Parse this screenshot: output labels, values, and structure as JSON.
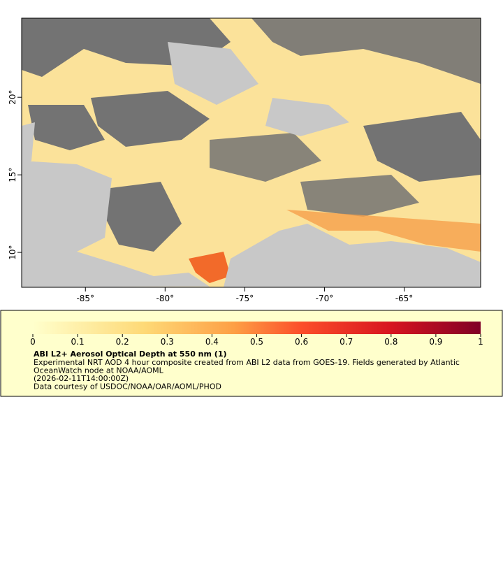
{
  "map": {
    "xlim": [
      -89,
      -60.2
    ],
    "ylim": [
      7.75,
      25.1
    ],
    "xticks": [
      {
        "value": -85,
        "label": "-85°"
      },
      {
        "value": -80,
        "label": "-80°"
      },
      {
        "value": -75,
        "label": "-75°"
      },
      {
        "value": -70,
        "label": "-70°"
      },
      {
        "value": -65,
        "label": "-65°"
      }
    ],
    "yticks": [
      {
        "value": 10,
        "label": "10°"
      },
      {
        "value": 15,
        "label": "15°"
      },
      {
        "value": 20,
        "label": "20°"
      }
    ]
  },
  "colorbar": {
    "lim": [
      0,
      1
    ],
    "ticks": [
      0,
      0.1,
      0.2,
      0.3,
      0.4,
      0.5,
      0.6,
      0.7,
      0.8,
      0.9,
      1
    ]
  },
  "legend": {
    "title": "ABI L2+ Aerosol Optical Depth at 550 nm (1)",
    "lines": [
      "Experimental NRT AOD 4 hour composite created from ABI L2 data from GOES-19. Fields generated by Atlantic",
      "OceanWatch node at NOAA/AOML",
      "(2026-02-11T14:00:00Z)",
      "Data courtesy of USDOC/NOAA/OAR/AOML/PHOD"
    ]
  }
}
